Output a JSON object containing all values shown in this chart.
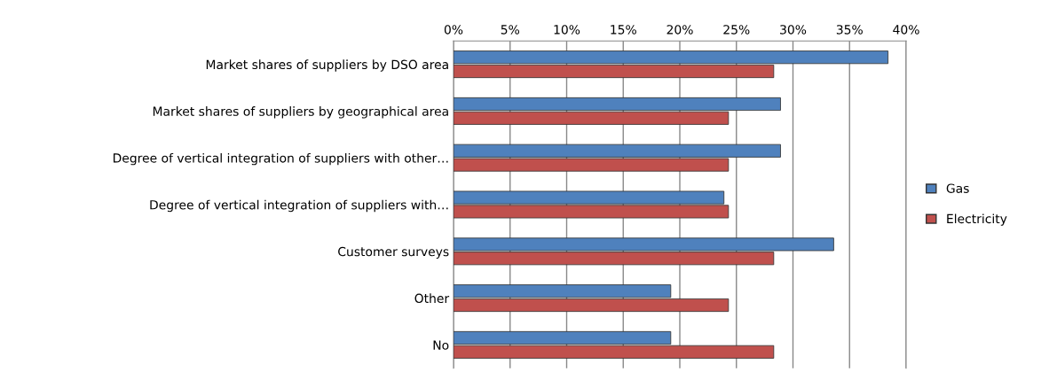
{
  "chart_data": {
    "type": "bar",
    "orientation": "horizontal",
    "categories": [
      "Market shares of suppliers by DSO area",
      "Market shares of suppliers by geographical area",
      "Degree of vertical integration of suppliers with other…",
      "Degree of vertical integration of suppliers with…",
      "Customer surveys",
      "Other",
      "No"
    ],
    "series": [
      {
        "name": "Gas",
        "color": "#4f81bd",
        "values": [
          38.4,
          28.9,
          28.9,
          23.9,
          33.6,
          19.2,
          19.2
        ]
      },
      {
        "name": "Electricity",
        "color": "#c0504d",
        "values": [
          28.3,
          24.3,
          24.3,
          24.3,
          28.3,
          24.3,
          28.3
        ]
      }
    ],
    "xlim": [
      0,
      40
    ],
    "xticks": [
      {
        "value": 0,
        "label": "0%"
      },
      {
        "value": 5,
        "label": "5%"
      },
      {
        "value": 10,
        "label": "10%"
      },
      {
        "value": 15,
        "label": "15%"
      },
      {
        "value": 20,
        "label": "20%"
      },
      {
        "value": 25,
        "label": "25%"
      },
      {
        "value": 30,
        "label": "30%"
      },
      {
        "value": 35,
        "label": "35%"
      },
      {
        "value": 40,
        "label": "40%"
      }
    ],
    "grid": "x",
    "legend": "right"
  }
}
